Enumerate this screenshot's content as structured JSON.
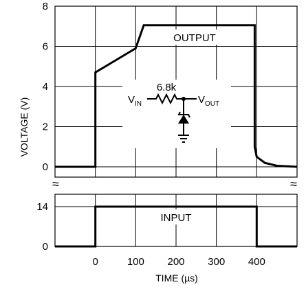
{
  "chart_data": [
    {
      "type": "line",
      "panel": "output",
      "label": "OUTPUT",
      "ylabel": "VOLTAGE (V)",
      "ylim": [
        0,
        8
      ],
      "yticks": [
        "0",
        "2",
        "4",
        "6",
        "8"
      ],
      "grid": true,
      "series": [
        {
          "name": "OUTPUT",
          "x": [
            -100,
            0,
            0,
            100,
            120,
            395,
            395,
            400,
            420,
            450,
            500
          ],
          "y": [
            0,
            0,
            4.7,
            5.9,
            7.05,
            7.05,
            1.0,
            0.5,
            0.2,
            0.05,
            0
          ]
        }
      ],
      "schematic": {
        "vin": "V",
        "vin_sub": "IN",
        "resistor": "6.8k",
        "vout": "V",
        "vout_sub": "OUT"
      }
    },
    {
      "type": "line",
      "panel": "input",
      "label": "INPUT",
      "xlabel": "TIME (µs)",
      "xlim": [
        -100,
        500
      ],
      "xticks": [
        "0",
        "100",
        "200",
        "300",
        "400"
      ],
      "yticks": [
        "0",
        "14"
      ],
      "grid": true,
      "series": [
        {
          "name": "INPUT",
          "x": [
            -100,
            0,
            0,
            400,
            400,
            500
          ],
          "y": [
            0,
            0,
            14,
            14,
            0,
            0
          ]
        }
      ]
    }
  ],
  "break_symbol": "≈"
}
